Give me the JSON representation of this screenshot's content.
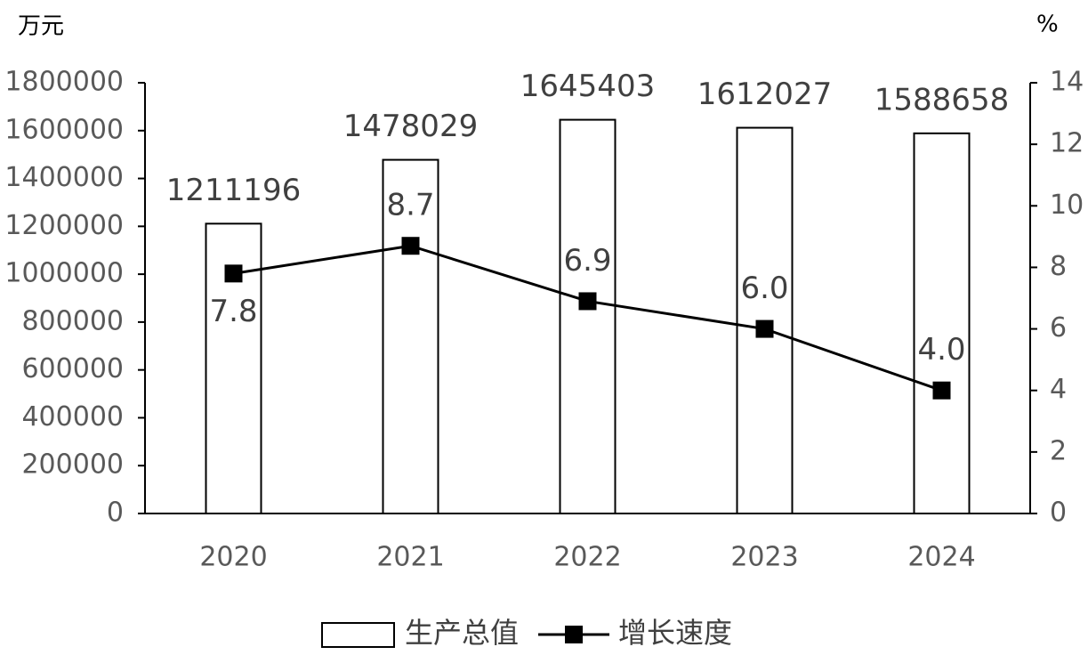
{
  "chart_data": {
    "type": "bar_line",
    "y_unit": "万元",
    "y2_unit": "%",
    "categories": [
      "2020",
      "2021",
      "2022",
      "2023",
      "2024"
    ],
    "series": [
      {
        "name": "生产总值",
        "type": "bar",
        "color": "#ffffff",
        "values": [
          1211196,
          1478029,
          1645403,
          1612027,
          1588658
        ]
      },
      {
        "name": "增长速度",
        "type": "line",
        "axis": "y2",
        "color": "#000000",
        "values": [
          7.8,
          8.7,
          6.9,
          6.0,
          4.0
        ],
        "value_labels": [
          "7.8",
          "8.7",
          "6.9",
          "6.0",
          "4.0"
        ]
      }
    ],
    "ylim": [
      0,
      1800000
    ],
    "yticks": [
      0,
      200000,
      400000,
      600000,
      800000,
      1000000,
      1200000,
      1400000,
      1600000,
      1800000
    ],
    "y2lim": [
      0,
      14
    ],
    "y2ticks": [
      0,
      2,
      4,
      6,
      8,
      10,
      12,
      14
    ],
    "grid": false,
    "legend": "bottom"
  }
}
